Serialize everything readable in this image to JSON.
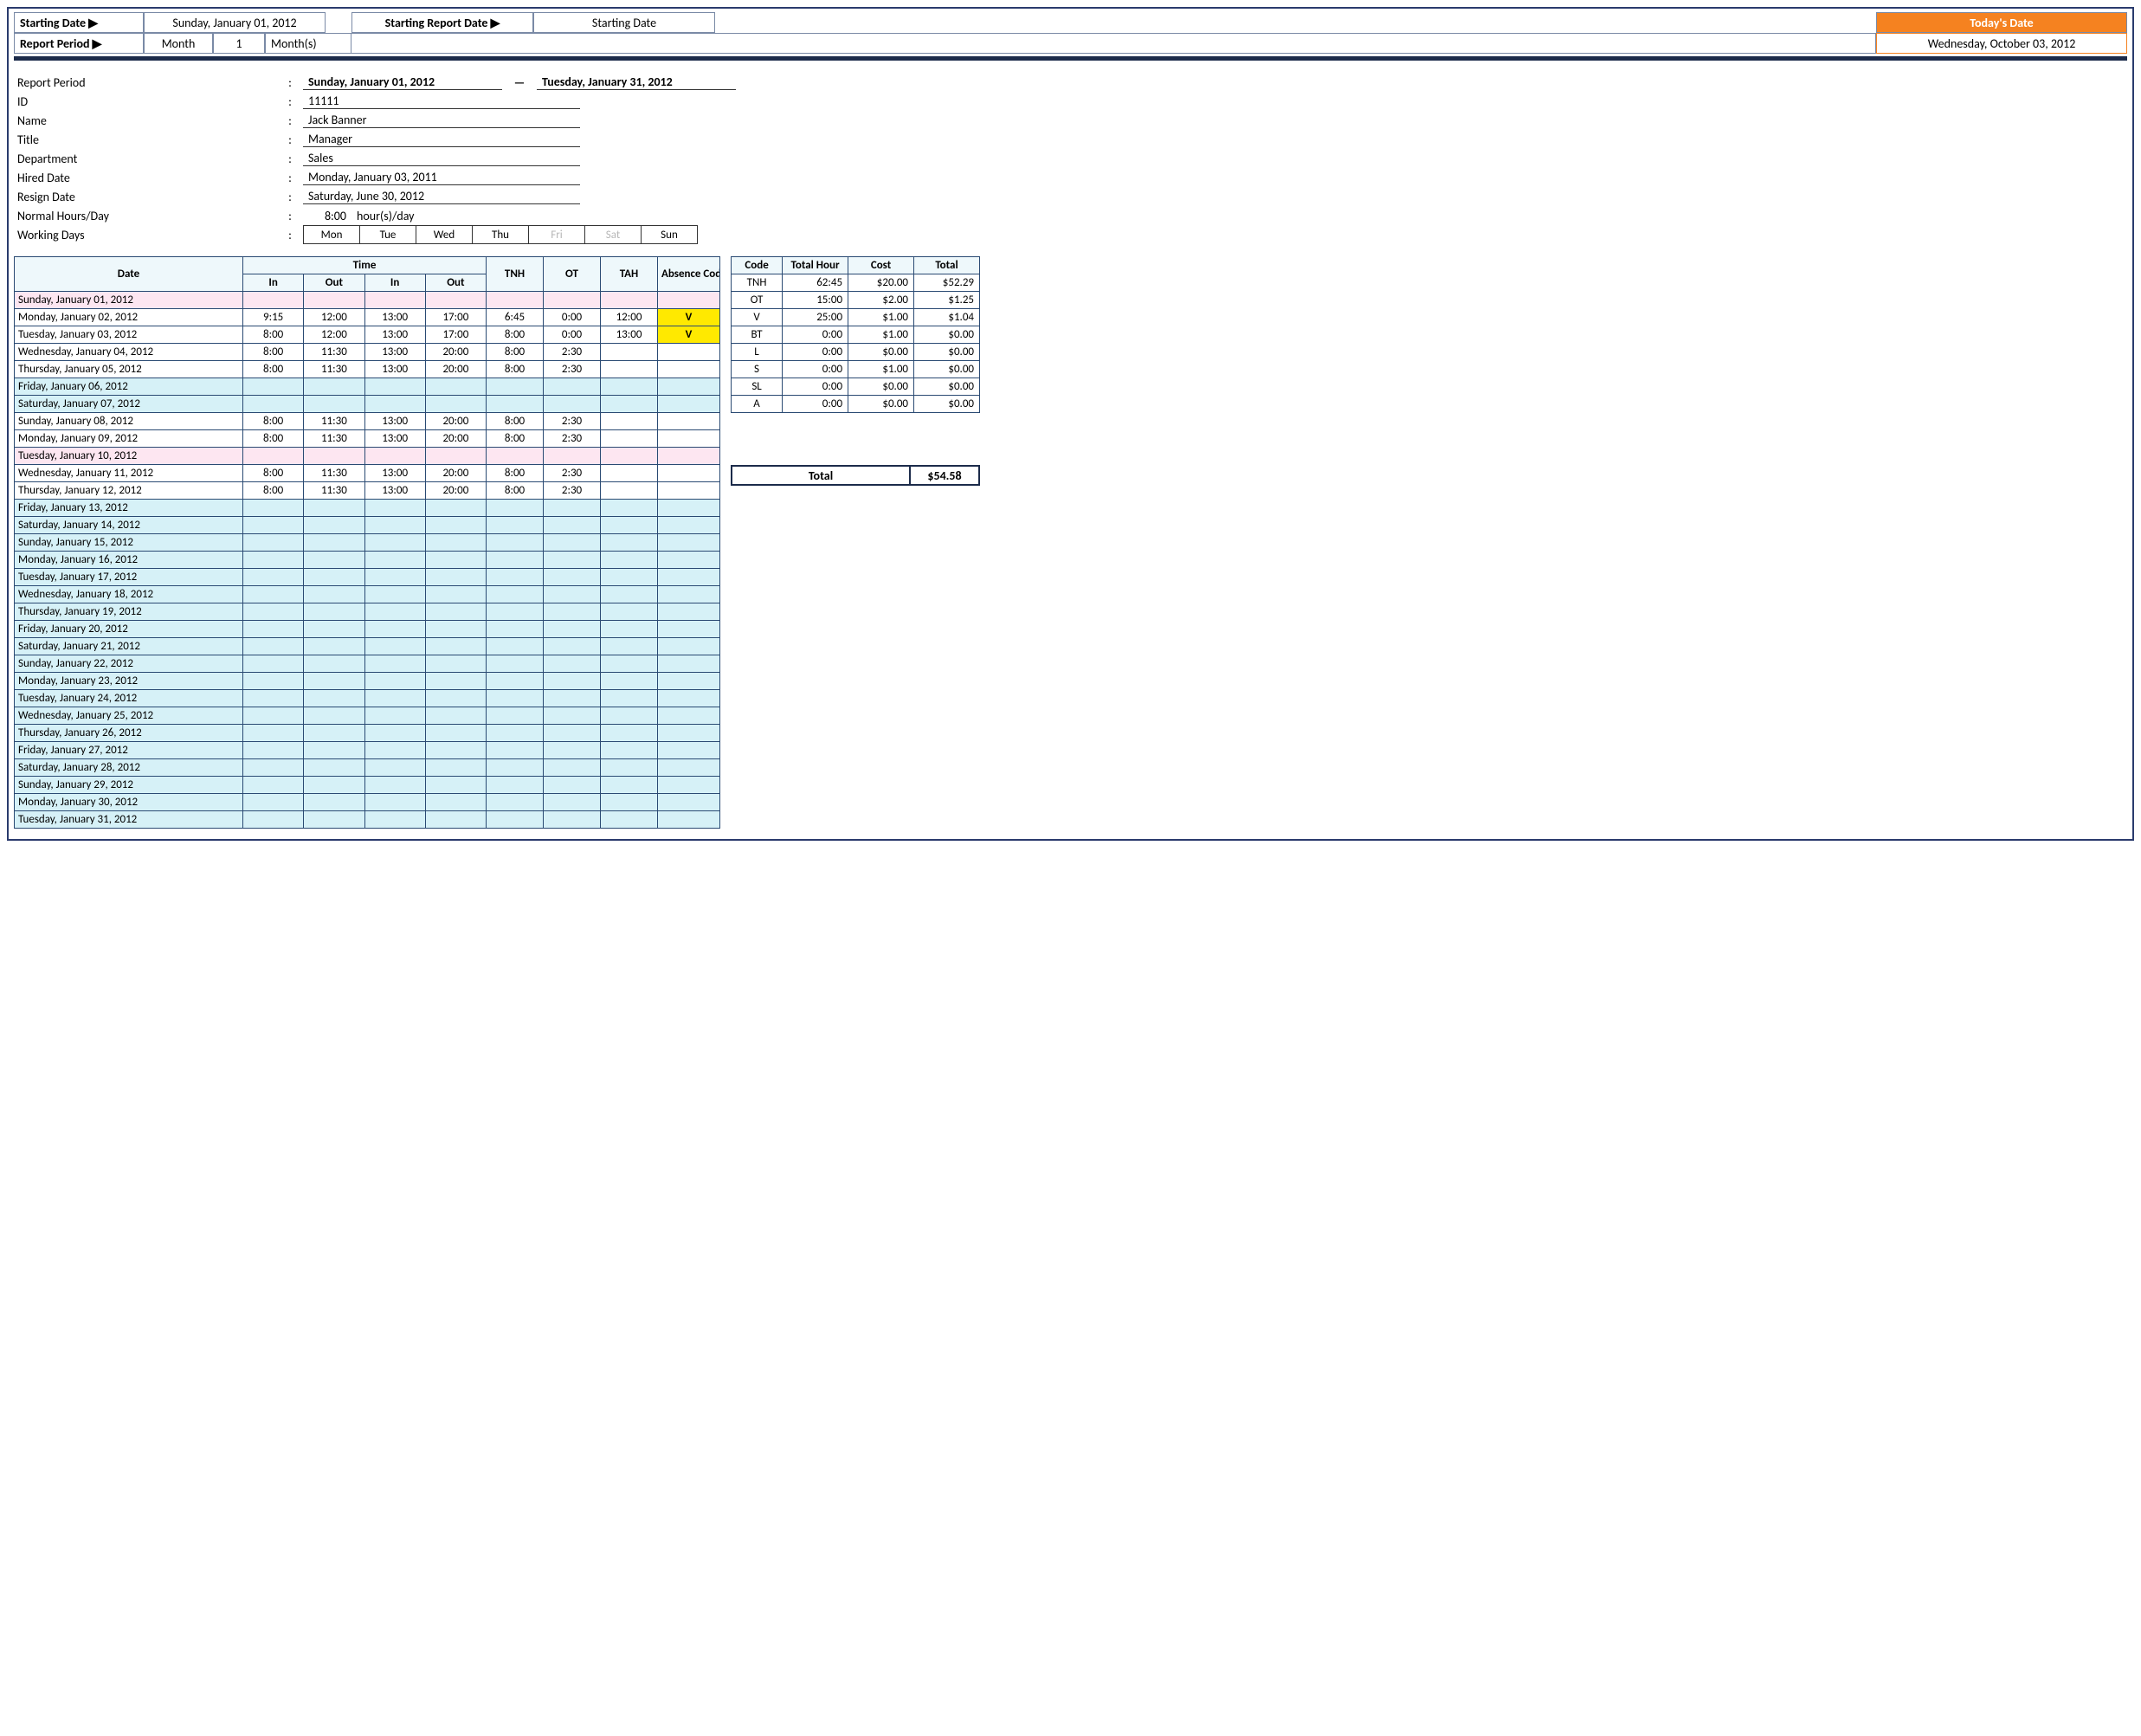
{
  "header": {
    "starting_date_label": "Starting Date ▶",
    "starting_date_value": "Sunday, January 01, 2012",
    "starting_report_date_label": "Starting Report Date ▶",
    "starting_report_date_value": "Starting Date",
    "todays_date_label": "Today's Date",
    "todays_date_value": "Wednesday, October 03, 2012",
    "report_period_label": "Report Period ▶",
    "report_period_unit": "Month",
    "report_period_num": "1",
    "report_period_unit2": "Month(s)"
  },
  "summary": {
    "report_period": {
      "label": "Report Period",
      "from": "Sunday, January 01, 2012",
      "to": "Tuesday, January 31, 2012",
      "dash": "—"
    },
    "id": {
      "label": "ID",
      "value": "11111"
    },
    "name": {
      "label": "Name",
      "value": "Jack Banner"
    },
    "title": {
      "label": "Title",
      "value": "Manager"
    },
    "department": {
      "label": "Department",
      "value": "Sales"
    },
    "hired": {
      "label": "Hired Date",
      "value": "Monday, January 03, 2011"
    },
    "resign": {
      "label": "Resign Date",
      "value": "Saturday, June 30, 2012"
    },
    "hours": {
      "label": "Normal Hours/Day",
      "value": "8:00",
      "unit": "hour(s)/day"
    },
    "working": {
      "label": "Working Days",
      "days": [
        "Mon",
        "Tue",
        "Wed",
        "Thu",
        "Fri",
        "Sat",
        "Sun"
      ],
      "off": [
        false,
        false,
        false,
        false,
        true,
        true,
        false
      ]
    }
  },
  "timesheet": {
    "headers": {
      "date": "Date",
      "time": "Time",
      "in": "In",
      "out": "Out",
      "tnh": "TNH",
      "ot": "OT",
      "tah": "TAH",
      "abs": "Absence Code"
    },
    "rows": [
      {
        "date": "Sunday, January 01, 2012",
        "cls": "pink"
      },
      {
        "date": "Monday, January 02, 2012",
        "in1": "9:15",
        "out1": "12:00",
        "in2": "13:00",
        "out2": "17:00",
        "tnh": "6:45",
        "ot": "0:00",
        "tah": "12:00",
        "abs": "V",
        "absY": true
      },
      {
        "date": "Tuesday, January 03, 2012",
        "in1": "8:00",
        "out1": "12:00",
        "in2": "13:00",
        "out2": "17:00",
        "tnh": "8:00",
        "ot": "0:00",
        "tah": "13:00",
        "abs": "V",
        "absY": true
      },
      {
        "date": "Wednesday, January 04, 2012",
        "in1": "8:00",
        "out1": "11:30",
        "in2": "13:00",
        "out2": "20:00",
        "tnh": "8:00",
        "ot": "2:30"
      },
      {
        "date": "Thursday, January 05, 2012",
        "in1": "8:00",
        "out1": "11:30",
        "in2": "13:00",
        "out2": "20:00",
        "tnh": "8:00",
        "ot": "2:30"
      },
      {
        "date": "Friday, January 06, 2012",
        "cls": "blue"
      },
      {
        "date": "Saturday, January 07, 2012",
        "cls": "blue"
      },
      {
        "date": "Sunday, January 08, 2012",
        "in1": "8:00",
        "out1": "11:30",
        "in2": "13:00",
        "out2": "20:00",
        "tnh": "8:00",
        "ot": "2:30"
      },
      {
        "date": "Monday, January 09, 2012",
        "in1": "8:00",
        "out1": "11:30",
        "in2": "13:00",
        "out2": "20:00",
        "tnh": "8:00",
        "ot": "2:30"
      },
      {
        "date": "Tuesday, January 10, 2012",
        "cls": "pink"
      },
      {
        "date": "Wednesday, January 11, 2012",
        "in1": "8:00",
        "out1": "11:30",
        "in2": "13:00",
        "out2": "20:00",
        "tnh": "8:00",
        "ot": "2:30"
      },
      {
        "date": "Thursday, January 12, 2012",
        "in1": "8:00",
        "out1": "11:30",
        "in2": "13:00",
        "out2": "20:00",
        "tnh": "8:00",
        "ot": "2:30"
      },
      {
        "date": "Friday, January 13, 2012",
        "cls": "blue"
      },
      {
        "date": "Saturday, January 14, 2012",
        "cls": "blue"
      },
      {
        "date": "Sunday, January 15, 2012",
        "cls": "blue"
      },
      {
        "date": "Monday, January 16, 2012",
        "cls": "blue"
      },
      {
        "date": "Tuesday, January 17, 2012",
        "cls": "blue"
      },
      {
        "date": "Wednesday, January 18, 2012",
        "cls": "blue"
      },
      {
        "date": "Thursday, January 19, 2012",
        "cls": "blue"
      },
      {
        "date": "Friday, January 20, 2012",
        "cls": "blue"
      },
      {
        "date": "Saturday, January 21, 2012",
        "cls": "blue"
      },
      {
        "date": "Sunday, January 22, 2012",
        "cls": "blue"
      },
      {
        "date": "Monday, January 23, 2012",
        "cls": "blue"
      },
      {
        "date": "Tuesday, January 24, 2012",
        "cls": "blue"
      },
      {
        "date": "Wednesday, January 25, 2012",
        "cls": "blue"
      },
      {
        "date": "Thursday, January 26, 2012",
        "cls": "blue"
      },
      {
        "date": "Friday, January 27, 2012",
        "cls": "blue"
      },
      {
        "date": "Saturday, January 28, 2012",
        "cls": "blue"
      },
      {
        "date": "Sunday, January 29, 2012",
        "cls": "blue"
      },
      {
        "date": "Monday, January 30, 2012",
        "cls": "blue"
      },
      {
        "date": "Tuesday, January 31, 2012",
        "cls": "blue"
      }
    ]
  },
  "codes": {
    "headers": [
      "Code",
      "Total Hour",
      "Cost",
      "Total"
    ],
    "rows": [
      [
        "TNH",
        "62:45",
        "$20.00",
        "$52.29"
      ],
      [
        "OT",
        "15:00",
        "$2.00",
        "$1.25"
      ],
      [
        "V",
        "25:00",
        "$1.00",
        "$1.04"
      ],
      [
        "BT",
        "0:00",
        "$1.00",
        "$0.00"
      ],
      [
        "L",
        "0:00",
        "$0.00",
        "$0.00"
      ],
      [
        "S",
        "0:00",
        "$1.00",
        "$0.00"
      ],
      [
        "SL",
        "0:00",
        "$0.00",
        "$0.00"
      ],
      [
        "A",
        "0:00",
        "$0.00",
        "$0.00"
      ]
    ],
    "grand_label": "Total",
    "grand_value": "$54.58"
  },
  "colors": {
    "border_dark": "#1c2b4a",
    "border_cell": "#2a4a73",
    "header_bg": "#eef8fb",
    "row_blue": "#d6f1f7",
    "row_pink": "#fde6f1",
    "cell_yellow": "#ffe900",
    "orange": "#f58220"
  }
}
